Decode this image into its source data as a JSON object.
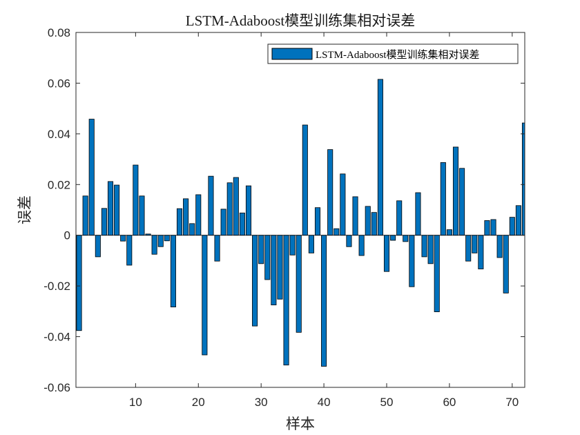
{
  "chart_data": {
    "type": "bar",
    "title": "LSTM-Adaboost模型训练集相对误差",
    "xlabel": "样本",
    "ylabel": "误差",
    "xlim": [
      0.5,
      72
    ],
    "ylim": [
      -0.06,
      0.08
    ],
    "xticks": [
      10,
      20,
      30,
      40,
      50,
      60,
      70
    ],
    "yticks": [
      -0.06,
      -0.04,
      -0.02,
      0,
      0.02,
      0.04,
      0.06,
      0.08
    ],
    "ytick_labels": [
      "-0.06",
      "-0.04",
      "-0.02",
      "0",
      "0.02",
      "0.04",
      "0.06",
      "0.08"
    ],
    "grid": false,
    "legend_position": "top-right",
    "bar_color": "#0072BD",
    "series": [
      {
        "name": "LSTM-Adaboost模型训练集相对误差",
        "x": [
          1,
          2,
          3,
          4,
          5,
          6,
          7,
          8,
          9,
          10,
          11,
          12,
          13,
          14,
          15,
          16,
          17,
          18,
          19,
          20,
          21,
          22,
          23,
          24,
          25,
          26,
          27,
          28,
          29,
          30,
          31,
          32,
          33,
          34,
          35,
          36,
          37,
          38,
          39,
          40,
          41,
          42,
          43,
          44,
          45,
          46,
          47,
          48,
          49,
          50,
          51,
          52,
          53,
          54,
          55,
          56,
          57,
          58,
          59,
          60,
          61,
          62,
          63,
          64,
          65,
          66,
          67,
          68,
          69,
          70,
          71,
          72
        ],
        "values": [
          -0.0376,
          0.0155,
          0.0458,
          -0.0085,
          0.0106,
          0.0212,
          0.0198,
          -0.0023,
          -0.0118,
          0.0277,
          0.0155,
          0.0005,
          -0.0075,
          -0.0045,
          -0.0022,
          -0.0283,
          0.0105,
          0.0144,
          0.0046,
          0.016,
          -0.0472,
          0.0233,
          -0.0102,
          0.0103,
          0.0207,
          0.0228,
          0.0088,
          0.0195,
          -0.0358,
          -0.0112,
          -0.0175,
          -0.0275,
          -0.0252,
          -0.0512,
          -0.0078,
          -0.0383,
          0.0435,
          -0.007,
          0.0109,
          -0.0517,
          0.0338,
          0.0026,
          0.0242,
          -0.0045,
          0.0152,
          -0.008,
          0.0114,
          0.009,
          0.0615,
          -0.0143,
          -0.002,
          0.0136,
          -0.0025,
          -0.0203,
          0.0168,
          -0.0085,
          -0.0112,
          -0.0302,
          0.0287,
          0.0022,
          0.0348,
          0.0264,
          -0.0102,
          -0.007,
          -0.0133,
          0.0058,
          0.0062,
          -0.0088,
          -0.0228,
          0.0071,
          0.0117,
          0.0443
        ]
      }
    ]
  }
}
